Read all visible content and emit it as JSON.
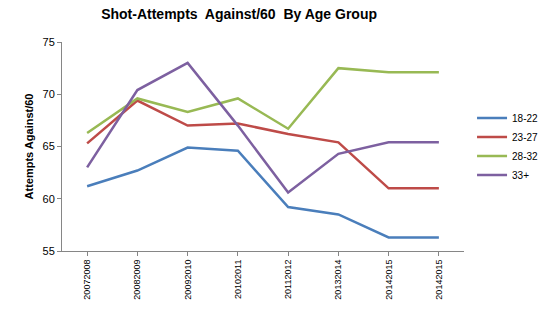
{
  "chart_data": {
    "type": "line",
    "title": "Shot-Attempts  Against/60  By Age Group",
    "y_label": "Attempts Against/60",
    "categories": [
      "20072008",
      "20082009",
      "20092010",
      "20102011",
      "20112012",
      "20132014",
      "20142015",
      "20142015"
    ],
    "series": [
      {
        "name": "18-22",
        "color": "#4a7ebb",
        "values": [
          61.2,
          62.7,
          64.9,
          64.6,
          59.2,
          58.5,
          56.3,
          56.3
        ]
      },
      {
        "name": "23-27",
        "color": "#be4b48",
        "values": [
          65.3,
          69.4,
          67.0,
          67.2,
          66.2,
          65.4,
          61.0,
          61.0
        ]
      },
      {
        "name": "28-32",
        "color": "#98b954",
        "values": [
          66.3,
          69.6,
          68.3,
          69.6,
          66.7,
          72.5,
          72.1,
          72.1
        ]
      },
      {
        "name": "33+",
        "color": "#7d60a0",
        "values": [
          63.0,
          70.4,
          73.0,
          67.0,
          60.6,
          64.3,
          65.4,
          65.4
        ]
      }
    ],
    "ylim": [
      55,
      75
    ],
    "yticks": [
      55,
      60,
      65,
      70,
      75
    ],
    "grid": false,
    "legend": "right"
  }
}
